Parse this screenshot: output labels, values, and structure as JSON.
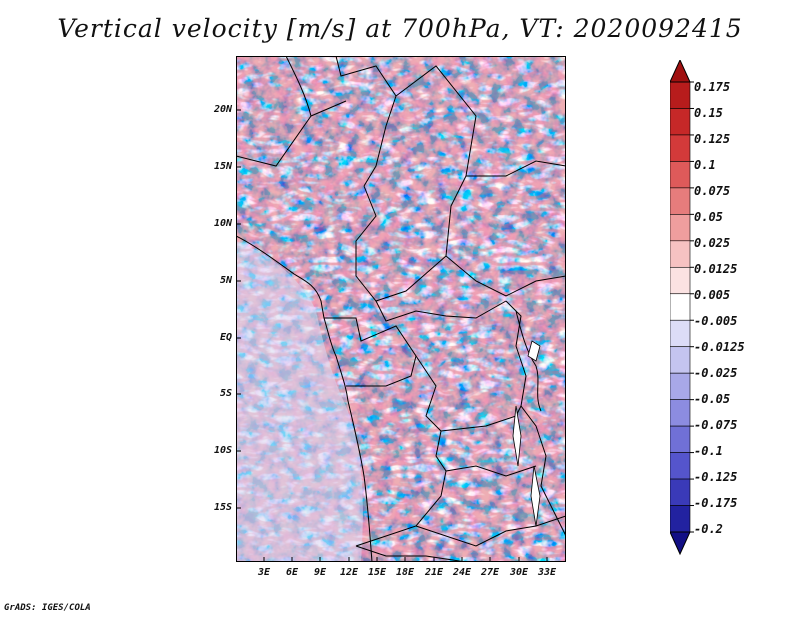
{
  "title": "Vertical velocity [m/s] at 700hPa, VT: 2020092415",
  "y_axis_labels": [
    "20N",
    "15N",
    "10N",
    "5N",
    "EQ",
    "5S",
    "10S",
    "15S"
  ],
  "x_axis_labels": [
    "3E",
    "6E",
    "9E",
    "12E",
    "15E",
    "18E",
    "21E",
    "24E",
    "27E",
    "30E",
    "33E"
  ],
  "colorbar": {
    "levels": [
      "0.175",
      "0.15",
      "0.125",
      "0.1",
      "0.075",
      "0.05",
      "0.025",
      "0.0125",
      "0.005",
      "-0.005",
      "-0.0125",
      "-0.025",
      "-0.05",
      "-0.075",
      "-0.1",
      "-0.125",
      "-0.175",
      "-0.2"
    ],
    "colors": [
      "#a01010",
      "#b71c1c",
      "#c62828",
      "#d33a3a",
      "#de5a5a",
      "#e67c7c",
      "#ef9e9e",
      "#f6c2c2",
      "#fbe2e2",
      "#ffffff",
      "#dcdcf7",
      "#c4c4f0",
      "#a8a8e8",
      "#8c8ce0",
      "#7070d6",
      "#5555cc",
      "#3a3ab8",
      "#2222a0",
      "#120f85"
    ]
  },
  "credit": "GrADS: IGES/COLA"
}
